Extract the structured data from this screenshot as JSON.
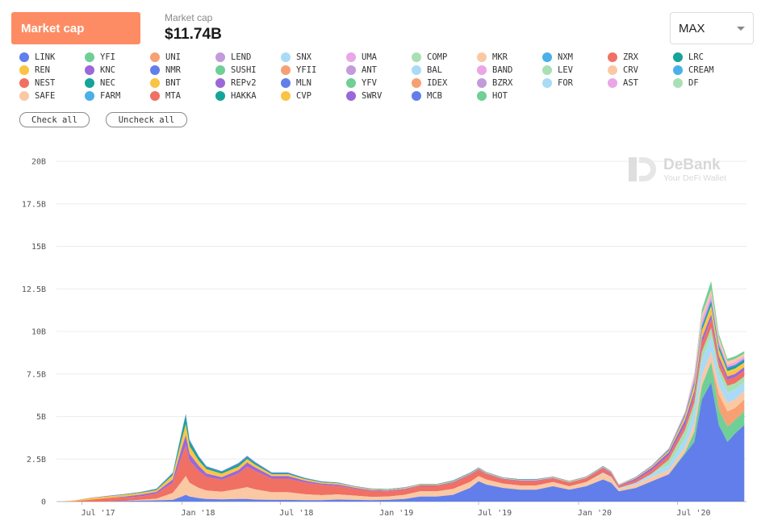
{
  "header": {
    "tab_label": "Market cap",
    "summary_label": "Market cap",
    "summary_value": "$11.74B",
    "range_value": "MAX"
  },
  "legend": {
    "items": [
      {
        "label": "LINK",
        "color": "#627eea"
      },
      {
        "label": "YFI",
        "color": "#6fcf97"
      },
      {
        "label": "UNI",
        "color": "#f7a074"
      },
      {
        "label": "LEND",
        "color": "#c39bdb"
      },
      {
        "label": "SNX",
        "color": "#a9dbf7"
      },
      {
        "label": "UMA",
        "color": "#eaa6e6"
      },
      {
        "label": "COMP",
        "color": "#a8e0b4"
      },
      {
        "label": "MKR",
        "color": "#fbc8a4"
      },
      {
        "label": "NXM",
        "color": "#4ab0e8"
      },
      {
        "label": "ZRX",
        "color": "#f07064"
      },
      {
        "label": "LRC",
        "color": "#15a39a"
      },
      {
        "label": "REN",
        "color": "#fbc344"
      },
      {
        "label": "KNC",
        "color": "#9a68d8"
      },
      {
        "label": "NMR",
        "color": "#627eea"
      },
      {
        "label": "SUSHI",
        "color": "#6fcf97"
      },
      {
        "label": "YFII",
        "color": "#f7a074"
      },
      {
        "label": "ANT",
        "color": "#c39bdb"
      },
      {
        "label": "BAL",
        "color": "#a9dbf7"
      },
      {
        "label": "BAND",
        "color": "#eaa6e6"
      },
      {
        "label": "LEV",
        "color": "#a8e0b4"
      },
      {
        "label": "CRV",
        "color": "#fbc8a4"
      },
      {
        "label": "CREAM",
        "color": "#4ab0e8"
      },
      {
        "label": "NEST",
        "color": "#f07064"
      },
      {
        "label": "NEC",
        "color": "#15a39a"
      },
      {
        "label": "BNT",
        "color": "#fbc344"
      },
      {
        "label": "REPv2",
        "color": "#9a68d8"
      },
      {
        "label": "MLN",
        "color": "#627eea"
      },
      {
        "label": "YFV",
        "color": "#6fcf97"
      },
      {
        "label": "IDEX",
        "color": "#f7a074"
      },
      {
        "label": "BZRX",
        "color": "#c39bdb"
      },
      {
        "label": "FOR",
        "color": "#a9dbf7"
      },
      {
        "label": "AST",
        "color": "#eaa6e6"
      },
      {
        "label": "DF",
        "color": "#a8e0b4"
      },
      {
        "label": "SAFE",
        "color": "#fbc8a4"
      },
      {
        "label": "FARM",
        "color": "#4ab0e8"
      },
      {
        "label": "MTA",
        "color": "#f07064"
      },
      {
        "label": "HAKKA",
        "color": "#15a39a"
      },
      {
        "label": "CVP",
        "color": "#fbc344"
      },
      {
        "label": "SWRV",
        "color": "#9a68d8"
      },
      {
        "label": "MCB",
        "color": "#627eea"
      },
      {
        "label": "HOT",
        "color": "#6fcf97"
      }
    ],
    "check_all_label": "Check all",
    "uncheck_all_label": "Uncheck all"
  },
  "watermark": {
    "title": "DeBank",
    "subtitle": "Your DeFi Wallet"
  },
  "chart_data": {
    "type": "area",
    "stacked": true,
    "title": "",
    "xlabel": "",
    "ylabel": "",
    "unit": "USD",
    "x_ticks": [
      "Jul '17",
      "Jan '18",
      "Jul '18",
      "Jan '19",
      "Jul '19",
      "Jan '20",
      "Jul '20"
    ],
    "y_ticks": [
      "0",
      "2.5B",
      "5B",
      "7.5B",
      "10B",
      "12.5B",
      "15B",
      "17.5B",
      "20B"
    ],
    "ylim": [
      0,
      20000000000
    ],
    "xlim": [
      "2017-05-15",
      "2020-11-05"
    ],
    "grid": true,
    "legend_position": "top",
    "x": [
      "2017-05-15",
      "2017-06-15",
      "2017-07-15",
      "2017-08-15",
      "2017-09-15",
      "2017-10-15",
      "2017-11-15",
      "2017-12-15",
      "2018-01-01",
      "2018-01-08",
      "2018-01-15",
      "2018-02-01",
      "2018-02-15",
      "2018-03-15",
      "2018-04-15",
      "2018-05-01",
      "2018-05-15",
      "2018-06-15",
      "2018-07-15",
      "2018-08-15",
      "2018-09-15",
      "2018-10-15",
      "2018-11-15",
      "2018-12-15",
      "2019-01-15",
      "2019-02-15",
      "2019-03-15",
      "2019-04-15",
      "2019-05-15",
      "2019-06-15",
      "2019-07-01",
      "2019-07-15",
      "2019-08-15",
      "2019-09-15",
      "2019-10-15",
      "2019-11-15",
      "2019-12-15",
      "2020-01-15",
      "2020-02-15",
      "2020-03-01",
      "2020-03-15",
      "2020-04-15",
      "2020-05-15",
      "2020-06-15",
      "2020-07-15",
      "2020-08-01",
      "2020-08-15",
      "2020-09-01",
      "2020-09-15",
      "2020-10-01",
      "2020-10-15",
      "2020-11-01"
    ],
    "series": [
      {
        "name": "LINK",
        "values": [
          0,
          0,
          0,
          0,
          0.04,
          0.05,
          0.07,
          0.1,
          0.3,
          0.4,
          0.3,
          0.2,
          0.15,
          0.13,
          0.15,
          0.15,
          0.12,
          0.1,
          0.1,
          0.08,
          0.08,
          0.12,
          0.1,
          0.08,
          0.1,
          0.15,
          0.3,
          0.3,
          0.4,
          0.8,
          1.2,
          1.0,
          0.8,
          0.7,
          0.7,
          0.9,
          0.7,
          0.9,
          1.3,
          1.1,
          0.6,
          0.8,
          1.2,
          1.6,
          2.8,
          3.5,
          6.0,
          7.0,
          4.5,
          3.5,
          4.0,
          4.5
        ]
      },
      {
        "name": "YFI",
        "values": [
          0,
          0,
          0,
          0,
          0,
          0,
          0,
          0,
          0,
          0,
          0,
          0,
          0,
          0,
          0,
          0,
          0,
          0,
          0,
          0,
          0,
          0,
          0,
          0,
          0,
          0,
          0,
          0,
          0,
          0,
          0,
          0,
          0,
          0,
          0,
          0,
          0,
          0,
          0,
          0,
          0,
          0,
          0,
          0,
          0.1,
          0.6,
          0.8,
          1.2,
          0.9,
          0.9,
          0.8,
          0.8
        ]
      },
      {
        "name": "UNI",
        "values": [
          0,
          0,
          0,
          0,
          0,
          0,
          0,
          0,
          0,
          0,
          0,
          0,
          0,
          0,
          0,
          0,
          0,
          0,
          0,
          0,
          0,
          0,
          0,
          0,
          0,
          0,
          0,
          0,
          0,
          0,
          0,
          0,
          0,
          0,
          0,
          0,
          0,
          0,
          0,
          0,
          0,
          0,
          0,
          0,
          0,
          0,
          0,
          0,
          0.9,
          0.9,
          0.7,
          0.7
        ]
      },
      {
        "name": "MKR",
        "values": [
          0,
          0,
          0,
          0,
          0,
          0.05,
          0.1,
          0.4,
          0.9,
          1.1,
          0.8,
          0.6,
          0.5,
          0.45,
          0.6,
          0.7,
          0.6,
          0.45,
          0.45,
          0.35,
          0.3,
          0.3,
          0.25,
          0.2,
          0.2,
          0.25,
          0.3,
          0.3,
          0.35,
          0.35,
          0.3,
          0.3,
          0.25,
          0.25,
          0.25,
          0.25,
          0.2,
          0.25,
          0.35,
          0.3,
          0.15,
          0.2,
          0.25,
          0.25,
          0.3,
          0.5,
          0.6,
          0.6,
          0.5,
          0.5,
          0.5,
          0.5
        ]
      },
      {
        "name": "SNX",
        "values": [
          0,
          0,
          0,
          0,
          0,
          0,
          0,
          0,
          0,
          0,
          0,
          0,
          0,
          0,
          0,
          0,
          0,
          0,
          0,
          0,
          0,
          0,
          0,
          0,
          0,
          0,
          0,
          0,
          0,
          0,
          0,
          0,
          0,
          0,
          0,
          0,
          0,
          0,
          0.05,
          0.05,
          0.05,
          0.1,
          0.2,
          0.3,
          0.5,
          0.7,
          0.9,
          0.9,
          0.7,
          0.6,
          0.6,
          0.5
        ]
      },
      {
        "name": "COMP",
        "values": [
          0,
          0,
          0,
          0,
          0,
          0,
          0,
          0,
          0,
          0,
          0,
          0,
          0,
          0,
          0,
          0,
          0,
          0,
          0,
          0,
          0,
          0,
          0,
          0,
          0,
          0,
          0,
          0,
          0,
          0,
          0,
          0,
          0,
          0,
          0,
          0,
          0,
          0,
          0,
          0,
          0,
          0,
          0,
          0.3,
          0.5,
          0.5,
          0.5,
          0.5,
          0.4,
          0.4,
          0.35,
          0.35
        ]
      },
      {
        "name": "ZRX",
        "values": [
          0,
          0.02,
          0.1,
          0.2,
          0.2,
          0.2,
          0.3,
          0.6,
          1.5,
          1.8,
          1.3,
          1.0,
          0.8,
          0.7,
          0.9,
          1.2,
          1.1,
          0.8,
          0.8,
          0.7,
          0.6,
          0.5,
          0.4,
          0.35,
          0.3,
          0.3,
          0.3,
          0.3,
          0.35,
          0.4,
          0.35,
          0.3,
          0.25,
          0.25,
          0.25,
          0.2,
          0.2,
          0.2,
          0.25,
          0.2,
          0.1,
          0.15,
          0.2,
          0.25,
          0.3,
          0.4,
          0.5,
          0.5,
          0.4,
          0.35,
          0.35,
          0.35
        ]
      },
      {
        "name": "KNC",
        "values": [
          0,
          0,
          0,
          0,
          0.05,
          0.1,
          0.1,
          0.2,
          0.5,
          0.6,
          0.4,
          0.3,
          0.2,
          0.15,
          0.2,
          0.25,
          0.2,
          0.15,
          0.15,
          0.1,
          0.08,
          0.08,
          0.06,
          0.05,
          0.05,
          0.05,
          0.05,
          0.05,
          0.05,
          0.05,
          0.05,
          0.05,
          0.04,
          0.04,
          0.04,
          0.04,
          0.03,
          0.04,
          0.05,
          0.05,
          0.05,
          0.1,
          0.15,
          0.2,
          0.3,
          0.3,
          0.3,
          0.3,
          0.25,
          0.2,
          0.2,
          0.2
        ]
      },
      {
        "name": "REN",
        "values": [
          0,
          0,
          0,
          0,
          0,
          0,
          0,
          0.05,
          0.2,
          0.25,
          0.15,
          0.1,
          0.08,
          0.06,
          0.05,
          0.05,
          0.04,
          0.03,
          0.03,
          0.03,
          0.02,
          0.02,
          0.02,
          0.02,
          0.02,
          0.02,
          0.02,
          0.02,
          0.02,
          0.02,
          0.02,
          0.02,
          0.02,
          0.02,
          0.02,
          0.02,
          0.02,
          0.02,
          0.03,
          0.03,
          0.02,
          0.03,
          0.04,
          0.06,
          0.15,
          0.25,
          0.35,
          0.4,
          0.3,
          0.25,
          0.25,
          0.2
        ]
      },
      {
        "name": "BNT",
        "values": [
          0,
          0.03,
          0.1,
          0.1,
          0.1,
          0.1,
          0.1,
          0.2,
          0.3,
          0.4,
          0.3,
          0.2,
          0.18,
          0.15,
          0.15,
          0.15,
          0.12,
          0.08,
          0.08,
          0.06,
          0.05,
          0.05,
          0.04,
          0.03,
          0.03,
          0.03,
          0.03,
          0.03,
          0.03,
          0.03,
          0.03,
          0.03,
          0.02,
          0.02,
          0.02,
          0.02,
          0.02,
          0.02,
          0.02,
          0.02,
          0.02,
          0.02,
          0.03,
          0.04,
          0.06,
          0.08,
          0.1,
          0.1,
          0.08,
          0.07,
          0.07,
          0.07
        ]
      },
      {
        "name": "LRC",
        "values": [
          0,
          0,
          0,
          0,
          0.02,
          0.03,
          0.05,
          0.1,
          0.4,
          0.5,
          0.3,
          0.2,
          0.12,
          0.1,
          0.15,
          0.12,
          0.1,
          0.06,
          0.05,
          0.04,
          0.03,
          0.03,
          0.02,
          0.02,
          0.02,
          0.02,
          0.02,
          0.02,
          0.03,
          0.03,
          0.03,
          0.02,
          0.02,
          0.02,
          0.02,
          0.02,
          0.02,
          0.02,
          0.02,
          0.02,
          0.01,
          0.02,
          0.03,
          0.05,
          0.08,
          0.15,
          0.2,
          0.25,
          0.2,
          0.15,
          0.15,
          0.15
        ]
      },
      {
        "name": "NMR",
        "values": [
          0,
          0.01,
          0.02,
          0.03,
          0.03,
          0.03,
          0.04,
          0.05,
          0.08,
          0.1,
          0.08,
          0.06,
          0.05,
          0.05,
          0.06,
          0.07,
          0.06,
          0.05,
          0.05,
          0.04,
          0.03,
          0.03,
          0.02,
          0.02,
          0.02,
          0.02,
          0.02,
          0.02,
          0.02,
          0.02,
          0.02,
          0.02,
          0.02,
          0.02,
          0.02,
          0.02,
          0.02,
          0.02,
          0.02,
          0.02,
          0.01,
          0.02,
          0.02,
          0.03,
          0.05,
          0.08,
          0.1,
          0.1,
          0.08,
          0.07,
          0.07,
          0.07
        ]
      },
      {
        "name": "BAND",
        "values": [
          0,
          0,
          0,
          0,
          0,
          0,
          0,
          0,
          0,
          0,
          0,
          0,
          0,
          0,
          0,
          0,
          0,
          0,
          0,
          0,
          0,
          0,
          0,
          0,
          0,
          0,
          0,
          0,
          0,
          0,
          0,
          0,
          0,
          0,
          0.01,
          0.01,
          0.01,
          0.01,
          0.01,
          0.01,
          0.01,
          0.02,
          0.03,
          0.05,
          0.15,
          0.3,
          0.35,
          0.3,
          0.2,
          0.15,
          0.15,
          0.15
        ]
      },
      {
        "name": "CRV",
        "values": [
          0,
          0,
          0,
          0,
          0,
          0,
          0,
          0,
          0,
          0,
          0,
          0,
          0,
          0,
          0,
          0,
          0,
          0,
          0,
          0,
          0,
          0,
          0,
          0,
          0,
          0,
          0,
          0,
          0,
          0,
          0,
          0,
          0,
          0,
          0,
          0,
          0,
          0,
          0,
          0,
          0,
          0,
          0,
          0,
          0,
          0.2,
          0.3,
          0.3,
          0.25,
          0.2,
          0.2,
          0.15
        ]
      },
      {
        "name": "SUSHI",
        "values": [
          0,
          0,
          0,
          0,
          0,
          0,
          0,
          0,
          0,
          0,
          0,
          0,
          0,
          0,
          0,
          0,
          0,
          0,
          0,
          0,
          0,
          0,
          0,
          0,
          0,
          0,
          0,
          0,
          0,
          0,
          0,
          0,
          0,
          0,
          0,
          0,
          0,
          0,
          0,
          0,
          0,
          0,
          0,
          0,
          0,
          0,
          0.3,
          0.5,
          0.2,
          0.15,
          0.15,
          0.15
        ]
      }
    ]
  }
}
